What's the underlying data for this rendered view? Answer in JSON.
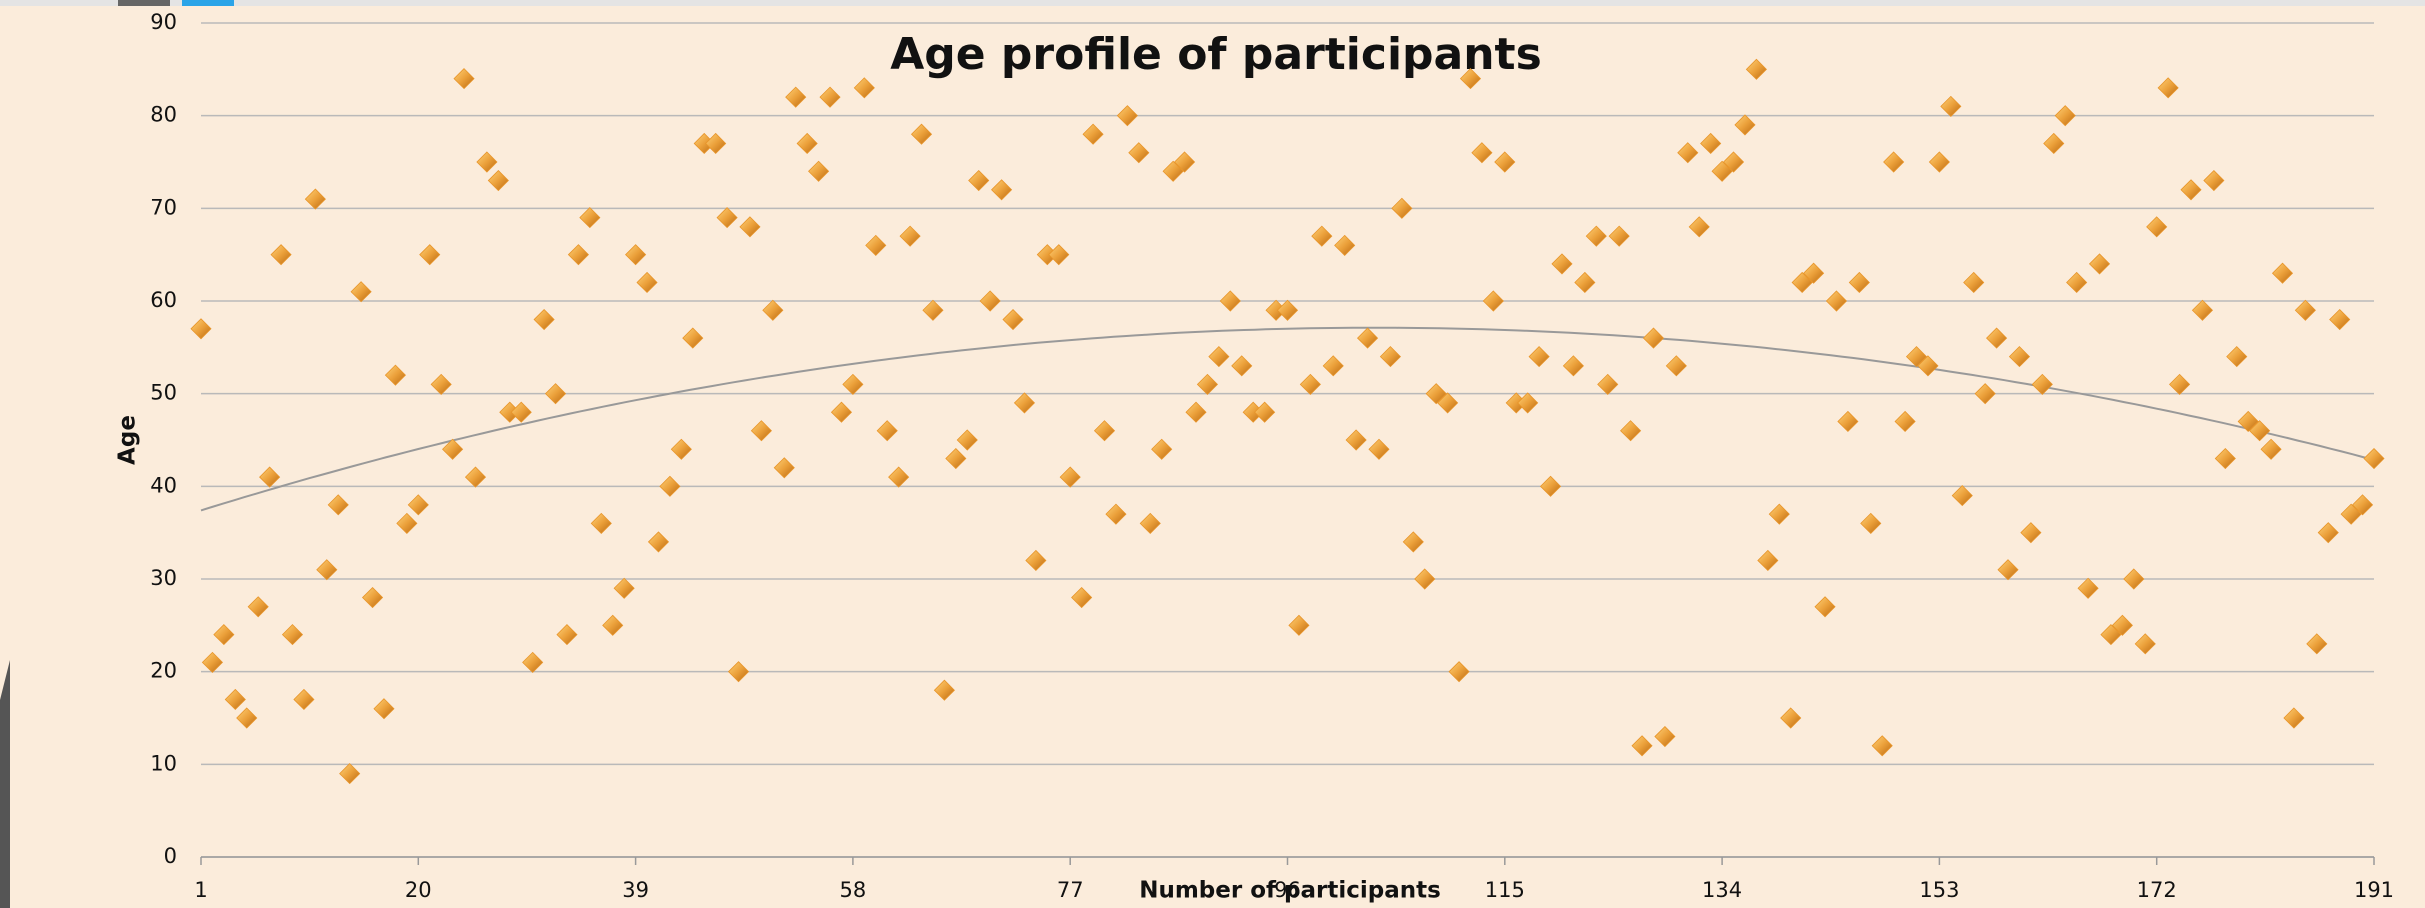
{
  "chart_data": {
    "type": "scatter",
    "title": "Age profile of participants",
    "x_label": "Number of participants",
    "y_label": "Age",
    "color": "#e8952a",
    "marker": "diamond",
    "grid": true,
    "trendline": {
      "type": "polynomial",
      "order": 2,
      "color": "#999999"
    },
    "xlim": [
      1,
      191
    ],
    "xticks": [
      1,
      20,
      39,
      58,
      77,
      96,
      115,
      134,
      153,
      172,
      191
    ],
    "ylim": [
      0,
      90
    ],
    "yticks": [
      0,
      10,
      20,
      30,
      40,
      50,
      60,
      70,
      80,
      90
    ],
    "x": [
      1,
      2,
      3,
      4,
      5,
      6,
      7,
      8,
      9,
      10,
      11,
      12,
      13,
      14,
      15,
      16,
      17,
      18,
      19,
      20,
      21,
      22,
      23,
      24,
      25,
      26,
      27,
      28,
      29,
      30,
      31,
      32,
      33,
      34,
      35,
      36,
      37,
      38,
      39,
      40,
      41,
      42,
      43,
      44,
      45,
      46,
      47,
      48,
      49,
      50,
      51,
      52,
      53,
      54,
      55,
      56,
      57,
      58,
      59,
      60,
      61,
      62,
      63,
      64,
      65,
      66,
      67,
      68,
      69,
      70,
      71,
      72,
      73,
      74,
      75,
      76,
      77,
      78,
      79,
      80,
      81,
      82,
      83,
      84,
      85,
      86,
      87,
      88,
      89,
      90,
      91,
      92,
      93,
      94,
      95,
      96,
      97,
      98,
      99,
      100,
      101,
      102,
      103,
      104,
      105,
      106,
      107,
      108,
      109,
      110,
      111,
      112,
      113,
      114,
      115,
      116,
      117,
      118,
      119,
      120,
      121,
      122,
      123,
      124,
      125,
      126,
      127,
      128,
      129,
      130,
      131,
      132,
      133,
      134,
      135,
      136,
      137,
      138,
      139,
      140,
      141,
      142,
      143,
      144,
      145,
      146,
      147,
      148,
      149,
      150,
      151,
      152,
      153,
      154,
      155,
      156,
      157,
      158,
      159,
      160,
      161,
      162,
      163,
      164,
      165,
      166,
      167,
      168,
      169,
      170,
      171,
      172,
      173,
      174,
      175,
      176,
      177,
      178,
      179,
      180,
      181,
      182,
      183,
      184,
      185,
      186,
      187,
      188,
      189,
      190,
      191
    ],
    "values": [
      57,
      21,
      24,
      17,
      15,
      27,
      41,
      65,
      24,
      17,
      71,
      31,
      38,
      9,
      61,
      28,
      16,
      52,
      36,
      38,
      65,
      51,
      44,
      84,
      41,
      75,
      73,
      48,
      48,
      21,
      58,
      50,
      24,
      65,
      69,
      36,
      25,
      29,
      65,
      62,
      34,
      40,
      44,
      56,
      77,
      77,
      69,
      20,
      68,
      46,
      59,
      42,
      82,
      77,
      74,
      82,
      48,
      51,
      83,
      66,
      46,
      41,
      67,
      78,
      59,
      18,
      43,
      45,
      73,
      60,
      72,
      58,
      49,
      32,
      65,
      65,
      41,
      28,
      78,
      46,
      37,
      80,
      76,
      36,
      44,
      74,
      75,
      48,
      51,
      54,
      60,
      53,
      48,
      48,
      59,
      59,
      25,
      51,
      67,
      53,
      66,
      45,
      56,
      44,
      54,
      70,
      34,
      30,
      50,
      49,
      20,
      84,
      76,
      60,
      75,
      49,
      49,
      54,
      40,
      64,
      53,
      62,
      67,
      51,
      67,
      46,
      12,
      56,
      13,
      53,
      76,
      68,
      77,
      74,
      75,
      79,
      85,
      32,
      37,
      15,
      62,
      63,
      27,
      60,
      47,
      62,
      36,
      12,
      75,
      47,
      54,
      53,
      75,
      81,
      39,
      62,
      50,
      56,
      31,
      54,
      35,
      51,
      77,
      80,
      62,
      29,
      64,
      24,
      25,
      30,
      23,
      68,
      83,
      51,
      72,
      59,
      73,
      43,
      54,
      47,
      46,
      44,
      63,
      15,
      59,
      23,
      35,
      58,
      37,
      38,
      43
    ]
  }
}
